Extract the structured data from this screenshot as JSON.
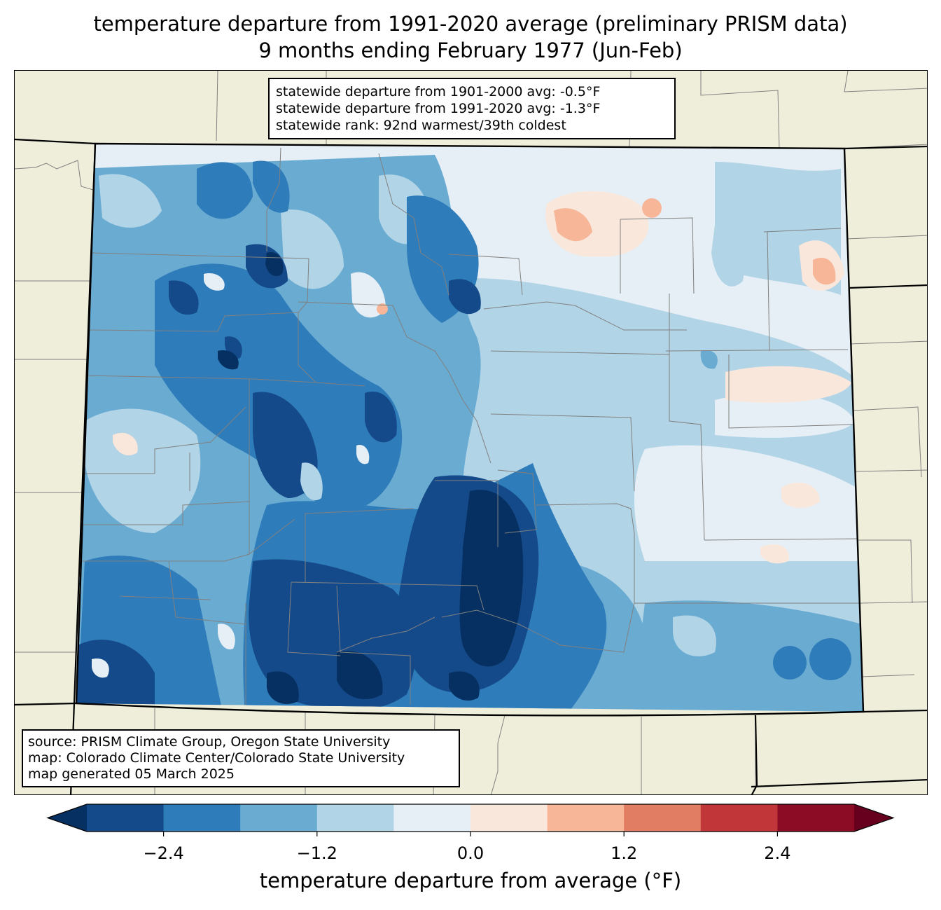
{
  "title": {
    "line1": "temperature departure from 1991-2020 average (preliminary PRISM data)",
    "line2": "9 months ending February 1977 (Jun-Feb)"
  },
  "stats": {
    "line1": "statewide departure from 1901-2000 avg: -0.5°F",
    "line2": "statewide departure from 1991-2020 avg: -1.3°F",
    "line3": "statewide rank: 92nd warmest/39th coldest"
  },
  "source": {
    "line1": "source: PRISM Climate Group, Oregon State University",
    "line2": "map: Colorado Climate Center/Colorado State University",
    "line3": "map generated 05 March 2025"
  },
  "colorbar": {
    "label": "temperature departure from average (°F)",
    "ticks": [
      "−2.4",
      "−1.2",
      "0.0",
      "1.2",
      "2.4"
    ],
    "tick_values": [
      -2.4,
      -1.2,
      0.0,
      1.2,
      2.4
    ],
    "range": [
      -3.0,
      3.0
    ],
    "step": 0.6,
    "colors": [
      "#053061",
      "#154a8a",
      "#2f7cba",
      "#6aabd2",
      "#b2d4e7",
      "#e6eff5",
      "#fae7dc",
      "#f7b698",
      "#e07d62",
      "#c13638",
      "#8c0c25",
      "#67001f"
    ]
  },
  "map": {
    "land_color": "#efeedb",
    "boundary_color": "#808080"
  }
}
